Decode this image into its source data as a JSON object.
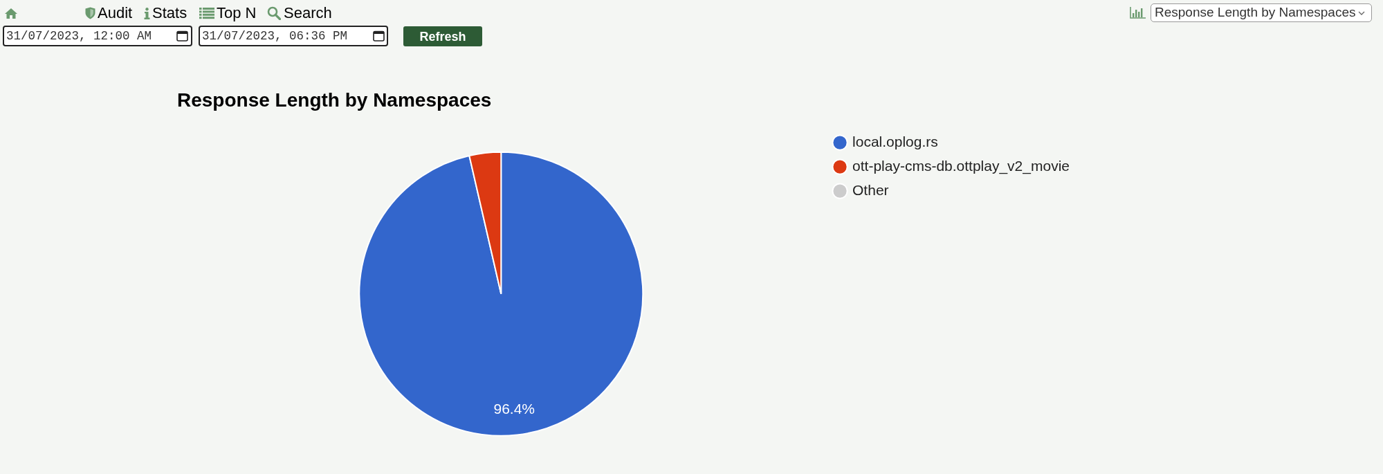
{
  "chart_data": {
    "type": "pie",
    "title": "Response Length by Namespaces",
    "categories": [
      "local.oplog.rs",
      "ott-play-cms-db.ottplay_v2_movie",
      "Other"
    ],
    "values": [
      96.4,
      3.6,
      0
    ],
    "colors": [
      "#3366cc",
      "#dc3912",
      "#cccccc"
    ],
    "value_labels": [
      "96.4%",
      null,
      null
    ],
    "legend": "top right",
    "annotations": [
      "Audit",
      "Stats",
      "Top N",
      "Search",
      "31/07/2023, 12:00 AM",
      "31/07/2023, 06:36 PM",
      "Refresh"
    ]
  }
}
